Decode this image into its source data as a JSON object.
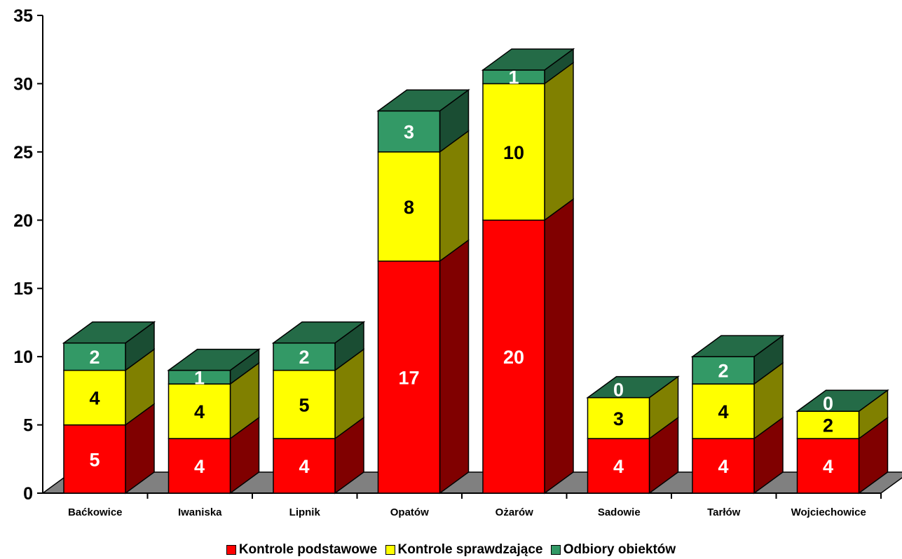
{
  "chart_data": {
    "type": "bar",
    "stacked": true,
    "three_d": true,
    "categories": [
      "Baćkowice",
      "Iwaniska",
      "Lipnik",
      "Opatów",
      "Ożarów",
      "Sadowie",
      "Tarłów",
      "Wojciechowice"
    ],
    "series": [
      {
        "name": "Kontrole podstawowe",
        "values": [
          5,
          4,
          4,
          17,
          20,
          4,
          4,
          4
        ],
        "color": "#ff0000",
        "label_color": "#ffffff"
      },
      {
        "name": "Kontrole sprawdzające",
        "values": [
          4,
          4,
          5,
          8,
          10,
          3,
          4,
          2
        ],
        "color": "#ffff00",
        "label_color": "#000000"
      },
      {
        "name": "Odbiory obiektów",
        "values": [
          2,
          1,
          2,
          3,
          1,
          0,
          2,
          0
        ],
        "color": "#339966",
        "label_color": "#ffffff"
      }
    ],
    "y_ticks": [
      "0",
      "5",
      "10",
      "15",
      "20",
      "25",
      "30",
      "35"
    ],
    "ylim": [
      0,
      35
    ],
    "grid": false,
    "legend_position": "bottom",
    "floor_color": "#808080"
  }
}
